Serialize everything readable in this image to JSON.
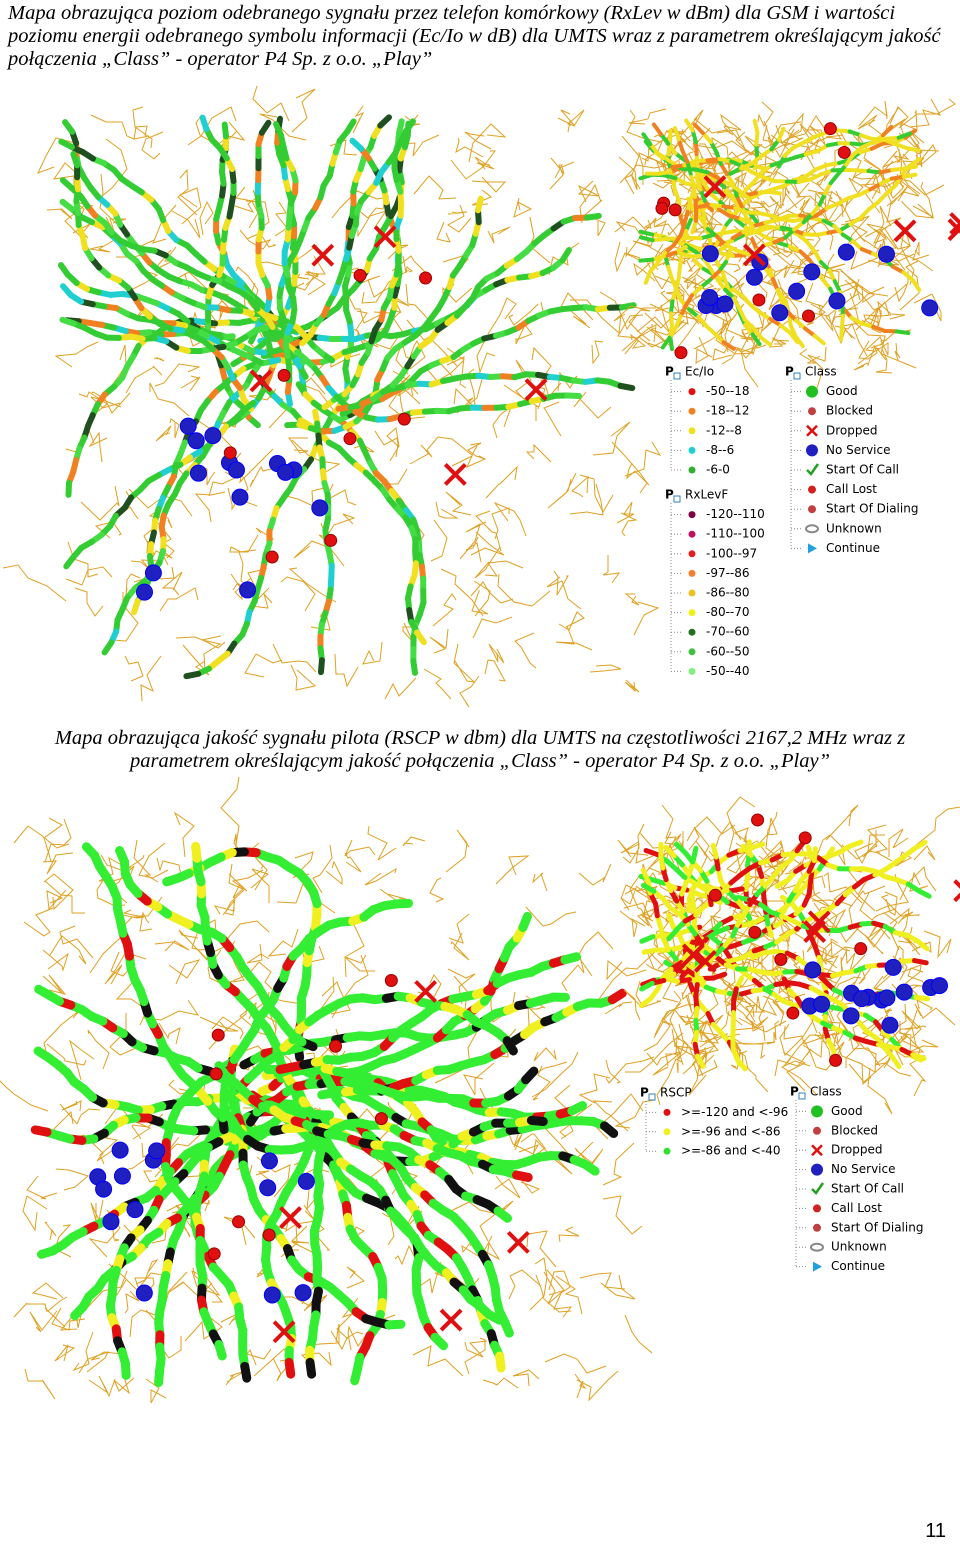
{
  "sections": [
    {
      "caption": "Mapa obrazująca poziom odebranego sygnału przez telefon komórkowy (RxLev w dBm) dla GSM i wartości poziomu energii odebranego symbolu informacji (Ec/Io w dB) dla UMTS wraz z parametrem określającym jakość połączenia „Class” - operator P4 Sp. z o.o. „Play”",
      "legends": [
        {
          "title": "Ec/Io",
          "items": [
            {
              "label": "-50--18",
              "color": "#e01010"
            },
            {
              "label": "-18--12",
              "color": "#f08020"
            },
            {
              "label": "-12--8",
              "color": "#f0e020"
            },
            {
              "label": "-8--6",
              "color": "#20d0d0"
            },
            {
              "label": "-6-0",
              "color": "#30b030"
            }
          ]
        },
        {
          "title": "RxLevF",
          "items": [
            {
              "label": "-120--110",
              "color": "#800040"
            },
            {
              "label": "-110--100",
              "color": "#c01060"
            },
            {
              "label": "-100--97",
              "color": "#e02020"
            },
            {
              "label": "-97--86",
              "color": "#f08030"
            },
            {
              "label": "-86--80",
              "color": "#f0c020"
            },
            {
              "label": "-80--70",
              "color": "#f0f020"
            },
            {
              "label": "-70--60",
              "color": "#207020"
            },
            {
              "label": "-60--50",
              "color": "#40c040"
            },
            {
              "label": "-50--40",
              "color": "#80f080"
            }
          ]
        },
        {
          "title": "Class",
          "items": [
            {
              "label": "Good"
            },
            {
              "label": "Blocked"
            },
            {
              "label": "Dropped"
            },
            {
              "label": "No Service"
            },
            {
              "label": "Start Of Call"
            },
            {
              "label": "Call Lost"
            },
            {
              "label": "Start Of Dialing"
            },
            {
              "label": "Unknown"
            },
            {
              "label": "Continue"
            }
          ]
        }
      ]
    },
    {
      "caption": "Mapa obrazująca jakość sygnału pilota (RSCP w dbm) dla UMTS na częstotliwości 2167,2 MHz wraz z parametrem określającym jakość połączenia „Class” - operator P4 Sp. z o.o. „Play”",
      "legends": [
        {
          "title": "RSCP",
          "items": [
            {
              "label": ">=-120 and <-96",
              "color": "#e01010"
            },
            {
              "label": ">=-96 and <-86",
              "color": "#f0f020"
            },
            {
              "label": ">=-86 and <-40",
              "color": "#30e030"
            }
          ]
        },
        {
          "title": "Class",
          "items": [
            {
              "label": "Good"
            },
            {
              "label": "Blocked"
            },
            {
              "label": "Dropped"
            },
            {
              "label": "No Service"
            },
            {
              "label": "Start Of Call"
            },
            {
              "label": "Call Lost"
            },
            {
              "label": "Start Of Dialing"
            },
            {
              "label": "Unknown"
            },
            {
              "label": "Continue"
            }
          ]
        }
      ]
    }
  ],
  "page_number": "11"
}
